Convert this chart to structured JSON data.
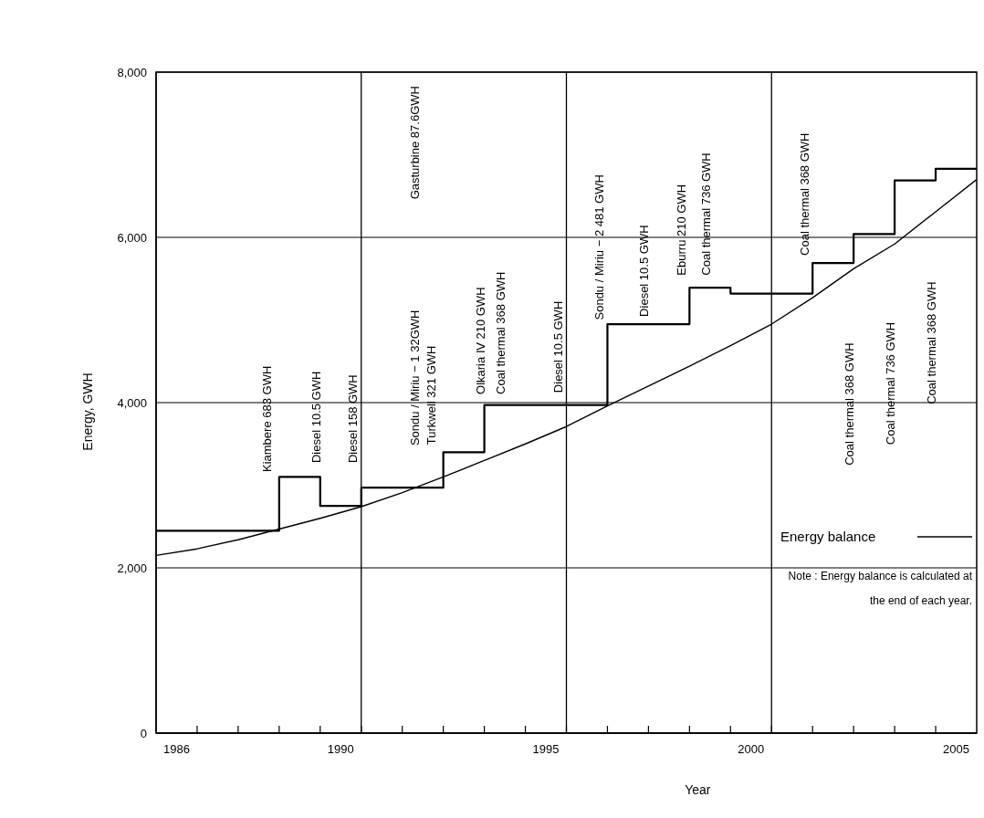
{
  "chart_data": {
    "type": "line",
    "xlabel": "Year",
    "ylabel": "Energy, GWH",
    "xlim": [
      1985.5,
      2005.5
    ],
    "xticks": [
      {
        "value": 1986,
        "label": "1986"
      },
      {
        "value": 1990,
        "label": "1990"
      },
      {
        "value": 1995,
        "label": "1995"
      },
      {
        "value": 2000,
        "label": "2000"
      },
      {
        "value": 2005,
        "label": "2005"
      },
      {
        "value": 1986.5,
        "label": null
      },
      {
        "value": 1987.5,
        "label": null
      },
      {
        "value": 1988.5,
        "label": null
      },
      {
        "value": 1989.5,
        "label": null
      },
      {
        "value": 1990.5,
        "label": null
      },
      {
        "value": 1991.5,
        "label": null
      },
      {
        "value": 1992.5,
        "label": null
      },
      {
        "value": 1993.5,
        "label": null
      },
      {
        "value": 1994.5,
        "label": null
      },
      {
        "value": 1995.5,
        "label": null
      },
      {
        "value": 1996.5,
        "label": null
      },
      {
        "value": 1997.5,
        "label": null
      },
      {
        "value": 1998.5,
        "label": null
      },
      {
        "value": 1999.5,
        "label": null
      },
      {
        "value": 2000.5,
        "label": null
      },
      {
        "value": 2001.5,
        "label": null
      },
      {
        "value": 2002.5,
        "label": null
      },
      {
        "value": 2003.5,
        "label": null
      },
      {
        "value": 2004.5,
        "label": null
      }
    ],
    "ylim": [
      0,
      8000
    ],
    "yticks": [
      0,
      {
        "value": 2000,
        "label": "2,000"
      },
      {
        "value": 4000,
        "label": "4,000"
      },
      {
        "value": 6000,
        "label": "6,000"
      },
      {
        "value": 8000,
        "label": "8,000"
      }
    ],
    "grid": "y",
    "legend": "bottom right",
    "marker": "none",
    "series": [
      {
        "name": "Energy balance",
        "type": "step",
        "color": "#000000",
        "x": [
          1985.5,
          1988.5,
          1989.5,
          1990.5,
          1992.5,
          1993.5,
          1996.5,
          1998.5,
          1999.5,
          2001.5,
          2002.5,
          2003.5,
          2004.5,
          2005.5
        ],
        "values": [
          2450,
          3100,
          2750,
          2970,
          3400,
          3970,
          4950,
          5390,
          5320,
          5690,
          6040,
          6690,
          6830,
          6830
        ]
      },
      {
        "color": "#000000",
        "x": [
          1985.5,
          1986.5,
          1987.5,
          1988.5,
          1989.5,
          1990.5,
          1991.5,
          1992.5,
          1993.5,
          1994.5,
          1995.5,
          1996.5,
          1997.5,
          1998.5,
          1999.5,
          2000.5,
          2001.5,
          2002.5,
          2003.5,
          2004.5,
          2005.5
        ],
        "values": [
          2150,
          2230,
          2340,
          2470,
          2600,
          2740,
          2910,
          3100,
          3300,
          3500,
          3710,
          3960,
          4200,
          4440,
          4690,
          4950,
          5270,
          5620,
          5920,
          6310,
          6700
        ]
      }
    ],
    "ref_lines": [
      {
        "axis": "x",
        "value": 1990.5
      },
      {
        "axis": "x",
        "value": 1995.5
      },
      {
        "axis": "x",
        "value": 2000.5
      }
    ],
    "annotations": [
      "Kiambere 683 GWH",
      "Diesel 10.5 GWH",
      "Diesel 158 GWH",
      "Sondu / Miriu − 1  32GWH",
      "Gasturbine  87.6GWH",
      "Turkwell 321 GWH",
      "Olkaria Ⅳ  210 GWH",
      "Coal thermal  368 GWH",
      "Diesel 10.5 GWH",
      "Sondu / Miriu − 2  481 GWH",
      "Diesel 10.5 GWH",
      "Eburru  210 GWH",
      "Coal thermal  736 GWH",
      "Coal thermal 368 GWH",
      "Coal thermal 368 GWH",
      "Coal  thermal  736 GWH",
      "Coal  thermal  368 GWH",
      "Note : Energy balance is calculated at the end of each year."
    ]
  }
}
